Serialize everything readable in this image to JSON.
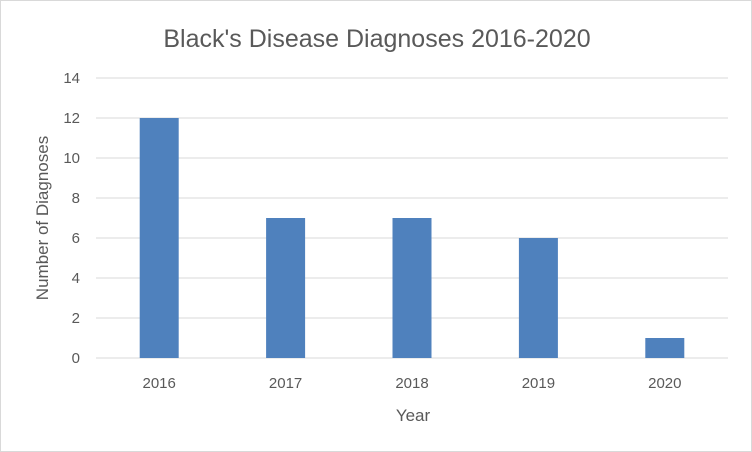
{
  "chart_data": {
    "type": "bar",
    "title": "Black's Disease Diagnoses 2016-2020",
    "xlabel": "Year",
    "ylabel": "Number of Diagnoses",
    "categories": [
      "2016",
      "2017",
      "2018",
      "2019",
      "2020"
    ],
    "values": [
      12,
      7,
      7,
      6,
      1
    ],
    "ylim": [
      0,
      14
    ],
    "yticks": [
      "0",
      "2",
      "4",
      "6",
      "8",
      "10",
      "12",
      "14"
    ],
    "grid": true,
    "legend": "none",
    "bar_color": "#4f81bd",
    "grid_color": "#d9d9d9"
  }
}
